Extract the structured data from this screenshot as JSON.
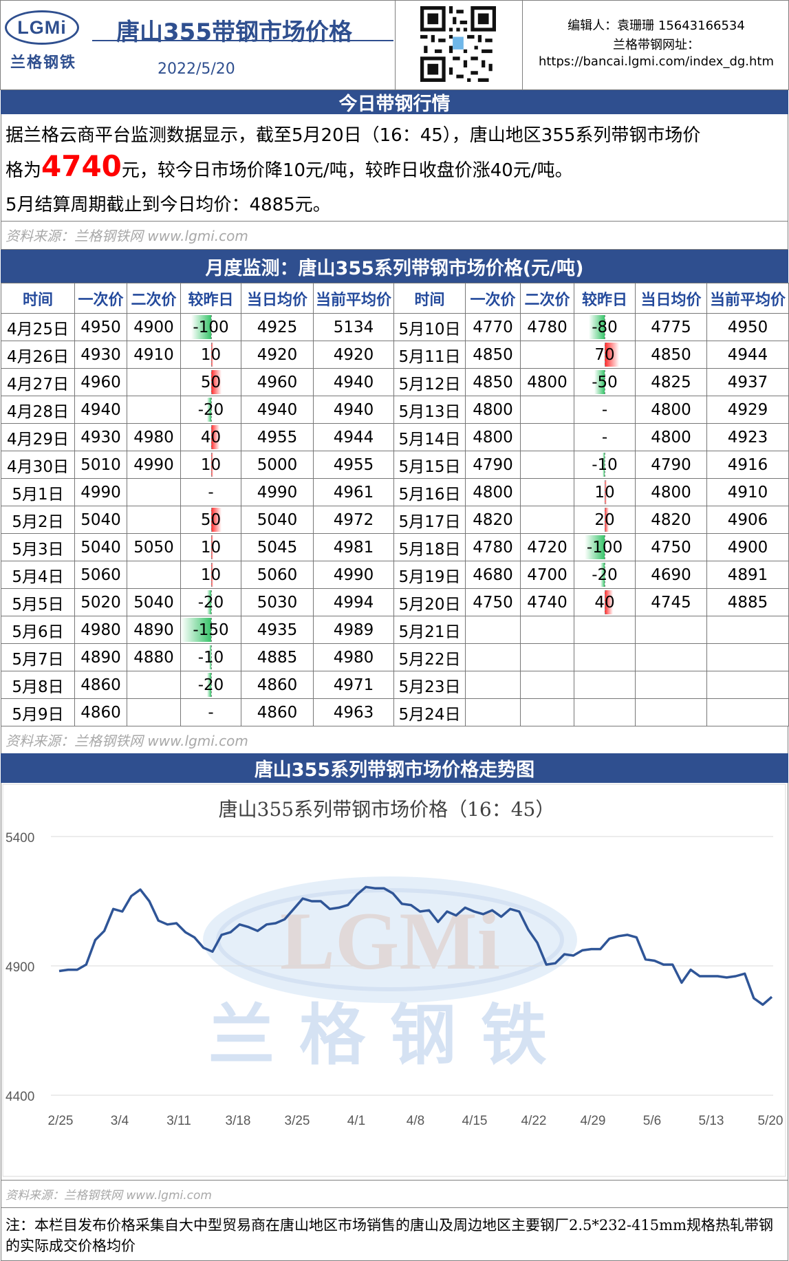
{
  "header": {
    "logo_text": "LGMi",
    "logo_cn": "兰格钢铁",
    "title": "唐山355带钢市场价格",
    "date": "2022/5/20",
    "editor": "编辑人：袁珊珊 15643166534",
    "site_label": "兰格带钢网址：",
    "site_url": "https://bancai.lgmi.com/index_dg.htm"
  },
  "today": {
    "heading": "今日带钢行情",
    "line1": "据兰格云商平台监测数据显示，截至5月20日（16：45），唐山地区355系列带钢市场价",
    "line2_pre": "格为",
    "price": "4740",
    "line2_post": "元，较今日市场价降10元/吨，较昨日收盘价涨40元/吨。",
    "line3": "5月结算周期截止到今日均价：4885元。",
    "source": "资料来源：兰格钢铁网 www.lgmi.com"
  },
  "monthly": {
    "heading": "月度监测：唐山355系列带钢市场价格(元/吨)",
    "headers": [
      "时间",
      "一次价",
      "二次价",
      "较昨日",
      "当日均价",
      "当前平均价",
      "时间",
      "一次价",
      "二次价",
      "较昨日",
      "当日均价",
      "当前平均价"
    ],
    "rows": [
      [
        "4月25日",
        "4950",
        "4900",
        "-100",
        "4925",
        "5134",
        "5月10日",
        "4770",
        "4780",
        "-80",
        "4775",
        "4950"
      ],
      [
        "4月26日",
        "4930",
        "4910",
        "10",
        "4920",
        "4920",
        "5月11日",
        "4850",
        "",
        "70",
        "4850",
        "4944"
      ],
      [
        "4月27日",
        "4960",
        "",
        "50",
        "4960",
        "4940",
        "5月12日",
        "4850",
        "4800",
        "-50",
        "4825",
        "4937"
      ],
      [
        "4月28日",
        "4940",
        "",
        "-20",
        "4940",
        "4940",
        "5月13日",
        "4800",
        "",
        "-",
        "4800",
        "4929"
      ],
      [
        "4月29日",
        "4930",
        "4980",
        "40",
        "4955",
        "4944",
        "5月14日",
        "4800",
        "",
        "-",
        "4800",
        "4923"
      ],
      [
        "4月30日",
        "5010",
        "4990",
        "10",
        "5000",
        "4955",
        "5月15日",
        "4790",
        "",
        "-10",
        "4790",
        "4916"
      ],
      [
        "5月1日",
        "4990",
        "",
        "-",
        "4990",
        "4961",
        "5月16日",
        "4800",
        "",
        "10",
        "4800",
        "4910"
      ],
      [
        "5月2日",
        "5040",
        "",
        "50",
        "5040",
        "4972",
        "5月17日",
        "4820",
        "",
        "20",
        "4820",
        "4906"
      ],
      [
        "5月3日",
        "5040",
        "5050",
        "10",
        "5045",
        "4981",
        "5月18日",
        "4780",
        "4720",
        "-100",
        "4750",
        "4900"
      ],
      [
        "5月4日",
        "5060",
        "",
        "10",
        "5060",
        "4990",
        "5月19日",
        "4680",
        "4700",
        "-20",
        "4690",
        "4891"
      ],
      [
        "5月5日",
        "5020",
        "5040",
        "-20",
        "5030",
        "4994",
        "5月20日",
        "4750",
        "4740",
        "40",
        "4745",
        "4885"
      ],
      [
        "5月6日",
        "4980",
        "4890",
        "-150",
        "4935",
        "4989",
        "5月21日",
        "",
        "",
        "",
        "",
        ""
      ],
      [
        "5月7日",
        "4890",
        "4880",
        "-10",
        "4885",
        "4980",
        "5月22日",
        "",
        "",
        "",
        "",
        ""
      ],
      [
        "5月8日",
        "4860",
        "",
        "-20",
        "4860",
        "4971",
        "5月23日",
        "",
        "",
        "",
        "",
        ""
      ],
      [
        "5月9日",
        "4860",
        "",
        "-",
        "4860",
        "4963",
        "5月24日",
        "",
        "",
        "",
        "",
        ""
      ]
    ],
    "source": "资料来源：兰格钢铁网 www.lgmi.com"
  },
  "trend": {
    "heading": "唐山355系列带钢市场价格走势图",
    "source": "资料来源：兰格钢铁网 www.lgmi.com"
  },
  "note": "注：本栏目发布价格采集自大中型贸易商在唐山地区市场销售的唐山及周边地区主要钢厂2.5*232-415mm规格热轧带钢的实际成交价格均价",
  "colors": {
    "header_blue": "#2f4f8f",
    "accent_red": "#ff0000",
    "series": "#2f5597",
    "up": "#ff2a2a",
    "down": "#38c46a"
  },
  "chart_data": {
    "type": "line",
    "title": "唐山355系列带钢市场价格（16：45）",
    "xlabel": "",
    "ylabel": "",
    "ylim": [
      4400,
      5400
    ],
    "yticks": [
      4400,
      4900,
      5400
    ],
    "xtick_labels": [
      "2/25",
      "3/4",
      "3/11",
      "3/18",
      "3/25",
      "4/1",
      "4/8",
      "4/15",
      "4/22",
      "4/29",
      "5/6",
      "5/13",
      "5/20"
    ],
    "grid": "horizontal",
    "legend": "none",
    "series": [
      {
        "name": "",
        "values": [
          4880,
          4885,
          4885,
          4905,
          5000,
          5035,
          5120,
          5110,
          5170,
          5195,
          5150,
          5075,
          5060,
          5065,
          5030,
          5010,
          4970,
          4955,
          5020,
          5030,
          5060,
          5050,
          5035,
          5060,
          5065,
          5080,
          5120,
          5160,
          5150,
          5150,
          5120,
          5125,
          5135,
          5175,
          5205,
          5200,
          5200,
          5180,
          5140,
          5135,
          5110,
          5115,
          5070,
          5110,
          5095,
          5125,
          5110,
          5100,
          5115,
          5090,
          5120,
          5110,
          5040,
          4990,
          4905,
          4910,
          4945,
          4940,
          4960,
          4965,
          4965,
          5005,
          5015,
          5020,
          5010,
          4925,
          4920,
          4905,
          4905,
          4835,
          4885,
          4860,
          4860,
          4860,
          4855,
          4860,
          4870,
          4775,
          4750,
          4780
        ]
      }
    ]
  }
}
